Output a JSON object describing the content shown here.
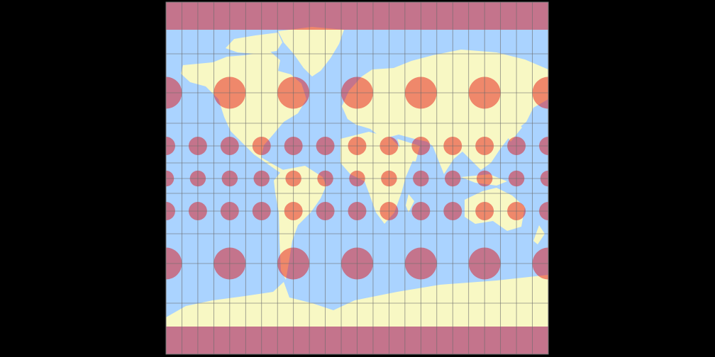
{
  "map": {
    "projection": "mercator",
    "title": "",
    "colors": {
      "background": "#000000",
      "ocean": "#aad3ff",
      "land": "#f8f8c4",
      "graticule": "#6b6b6b",
      "indicatrix": "#e50000",
      "frame": "#777777"
    },
    "graticule_step_deg": 15,
    "indicatrix": {
      "equatorial_radius_deg": 7.5,
      "rows": [
        {
          "lat": 60,
          "lons": [
            -180,
            -120,
            -60,
            0,
            60,
            120,
            180
          ]
        },
        {
          "lat": 30,
          "lons": [
            -180,
            -150,
            -120,
            -90,
            -60,
            -30,
            0,
            30,
            60,
            90,
            120,
            150,
            180
          ]
        },
        {
          "lat": 0,
          "lons": [
            -180,
            -150,
            -120,
            -90,
            -60,
            -30,
            0,
            30,
            60,
            90,
            120,
            150,
            180
          ]
        },
        {
          "lat": -30,
          "lons": [
            -180,
            -150,
            -120,
            -90,
            -60,
            -30,
            0,
            30,
            60,
            90,
            120,
            150,
            180
          ]
        },
        {
          "lat": -60,
          "lons": [
            -180,
            -120,
            -60,
            0,
            60,
            120,
            180
          ]
        }
      ],
      "polar_caps": true
    }
  }
}
